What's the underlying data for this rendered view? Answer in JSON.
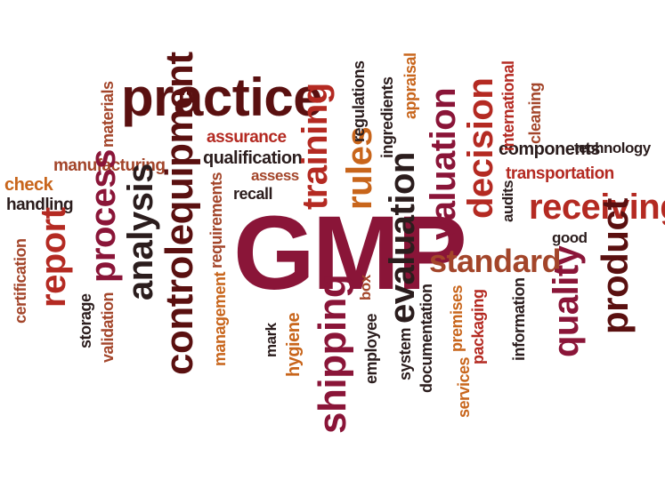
{
  "words": {
    "gmp": "GMP",
    "practice": "practice",
    "assurance": "assurance",
    "qualification": "qualification",
    "assess": "assess",
    "recall": "recall",
    "manufacturing": "manufacturing",
    "materials": "materials",
    "check": "check",
    "handling": "handling",
    "certification": "certification",
    "report": "report",
    "process": "process",
    "analysis": "analysis",
    "controlequipment": "controlequipment",
    "requirements": "requirements",
    "management": "management",
    "storage": "storage",
    "validation": "validation",
    "training": "training",
    "rules": "rules",
    "regulations": "regulations",
    "ingredients": "ingredients",
    "appraisal": "appraisal",
    "evaluation": "evaluation",
    "valuation": "valuation",
    "decision": "decision",
    "international": "international",
    "cleaning": "cleaning",
    "components": "components",
    "technology": "technology",
    "transportation": "transportation",
    "receiving": "receiving",
    "audits": "audits",
    "good": "good",
    "standard": "standard",
    "product": "product",
    "quality": "quality",
    "information": "information",
    "packaging": "packaging",
    "premises": "premises",
    "services": "services",
    "documentation": "documentation",
    "system": "system",
    "employee": "employee",
    "box": "box",
    "shipping": "shipping",
    "hygiene": "hygiene",
    "mark": "mark"
  },
  "colors": {
    "crimson": "#8a1538",
    "maroon": "#5a1010",
    "orange": "#c8651b",
    "red": "#b42a22",
    "black": "#2b1d1d",
    "rust": "#a3452a"
  }
}
